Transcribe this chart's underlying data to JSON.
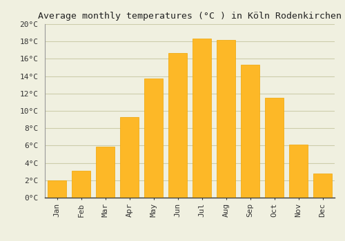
{
  "title": "Average monthly temperatures (°C ) in Köln Rodenkirchen",
  "months": [
    "Jan",
    "Feb",
    "Mar",
    "Apr",
    "May",
    "Jun",
    "Jul",
    "Aug",
    "Sep",
    "Oct",
    "Nov",
    "Dec"
  ],
  "values": [
    2.0,
    3.1,
    5.9,
    9.3,
    13.7,
    16.7,
    18.3,
    18.2,
    15.3,
    11.5,
    6.1,
    2.8
  ],
  "bar_color": "#FDB827",
  "bar_edge_color": "#F0A500",
  "background_color": "#F0F0E0",
  "grid_color": "#CCCCAA",
  "title_fontsize": 9.5,
  "tick_fontsize": 8,
  "ylim": [
    0,
    20
  ],
  "ytick_step": 2
}
